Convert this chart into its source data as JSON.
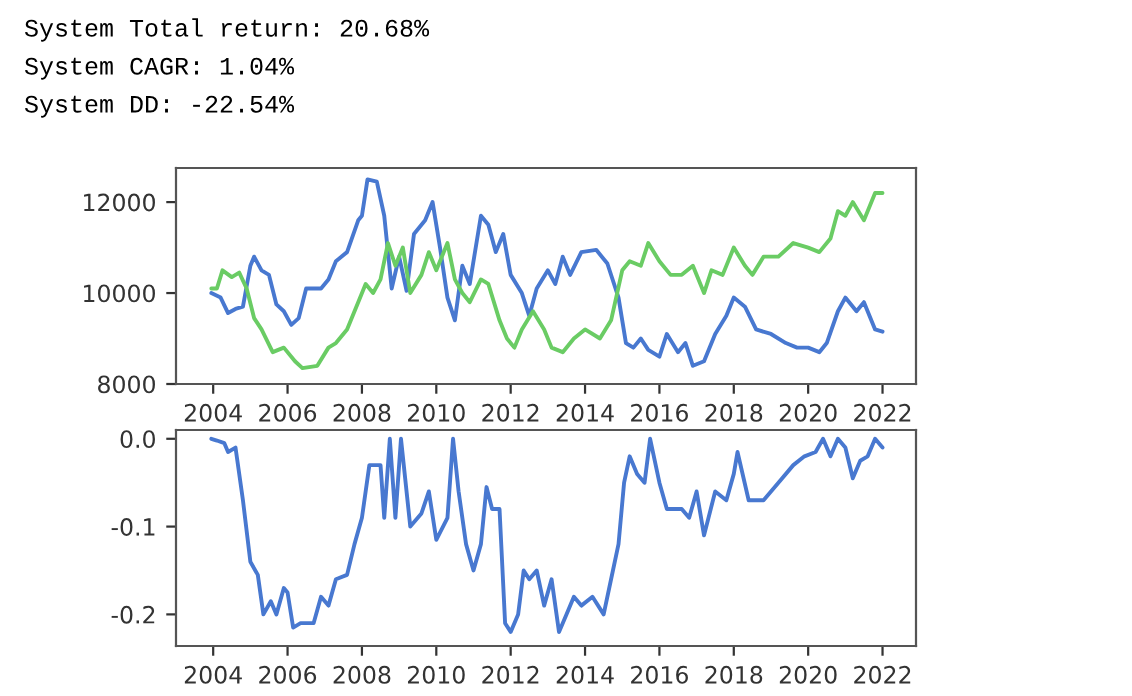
{
  "chart_data": [
    {
      "type": "line",
      "annotations": [
        "System Total return: 20.68%",
        "System CAGR: 1.04%",
        "System DD: -22.54%"
      ],
      "xlim": [
        2003.0,
        2022.9
      ],
      "xticks": [
        2004,
        2006,
        2008,
        2010,
        2012,
        2014,
        2016,
        2018,
        2020,
        2022
      ],
      "ylim": [
        8000,
        12750
      ],
      "yticks": [
        8000,
        10000,
        12000
      ],
      "grid": false,
      "legend": false,
      "series": [
        {
          "color": "#4878d0",
          "x": [
            2003.95,
            2004.2,
            2004.4,
            2004.6,
            2004.8,
            2005.0,
            2005.1,
            2005.3,
            2005.5,
            2005.7,
            2005.9,
            2006.1,
            2006.3,
            2006.5,
            2006.9,
            2007.1,
            2007.3,
            2007.6,
            2007.9,
            2008.0,
            2008.15,
            2008.4,
            2008.6,
            2008.8,
            2009.0,
            2009.2,
            2009.4,
            2009.7,
            2009.9,
            2010.1,
            2010.3,
            2010.5,
            2010.7,
            2010.9,
            2011.2,
            2011.4,
            2011.6,
            2011.8,
            2012.0,
            2012.3,
            2012.5,
            2012.7,
            2013.0,
            2013.2,
            2013.4,
            2013.6,
            2013.9,
            2014.3,
            2014.6,
            2014.9,
            2015.1,
            2015.3,
            2015.5,
            2015.7,
            2016.0,
            2016.2,
            2016.5,
            2016.7,
            2016.9,
            2017.2,
            2017.5,
            2017.8,
            2018.0,
            2018.3,
            2018.6,
            2019.0,
            2019.4,
            2019.7,
            2020.0,
            2020.3,
            2020.5,
            2020.8,
            2021.0,
            2021.3,
            2021.5,
            2021.8,
            2022.0
          ],
          "values": [
            10000,
            9900,
            9560,
            9650,
            9700,
            10600,
            10800,
            10500,
            10400,
            9750,
            9600,
            9300,
            9450,
            10100,
            10100,
            10300,
            10700,
            10900,
            11600,
            11700,
            12500,
            12450,
            11700,
            10100,
            10800,
            10050,
            11300,
            11600,
            12000,
            11000,
            9900,
            9400,
            10600,
            10200,
            11700,
            11500,
            10900,
            11300,
            10400,
            10000,
            9500,
            10100,
            10500,
            10200,
            10800,
            10400,
            10900,
            10950,
            10650,
            9900,
            8900,
            8800,
            9000,
            8750,
            8600,
            9100,
            8700,
            8900,
            8400,
            8500,
            9100,
            9500,
            9900,
            9700,
            9200,
            9100,
            8900,
            8800,
            8800,
            8700,
            8900,
            9600,
            9900,
            9600,
            9800,
            9200,
            9150
          ]
        },
        {
          "color": "#6acc64",
          "x": [
            2003.95,
            2004.1,
            2004.25,
            2004.5,
            2004.7,
            2004.9,
            2005.1,
            2005.3,
            2005.6,
            2005.9,
            2006.2,
            2006.4,
            2006.8,
            2007.1,
            2007.3,
            2007.6,
            2007.9,
            2008.1,
            2008.3,
            2008.5,
            2008.7,
            2008.9,
            2009.1,
            2009.3,
            2009.6,
            2009.8,
            2010.0,
            2010.3,
            2010.5,
            2010.7,
            2010.9,
            2011.2,
            2011.4,
            2011.7,
            2011.9,
            2012.1,
            2012.3,
            2012.6,
            2012.9,
            2013.1,
            2013.4,
            2013.7,
            2014.0,
            2014.4,
            2014.7,
            2015.0,
            2015.2,
            2015.5,
            2015.7,
            2016.0,
            2016.3,
            2016.6,
            2016.9,
            2017.2,
            2017.4,
            2017.7,
            2018.0,
            2018.3,
            2018.5,
            2018.8,
            2019.2,
            2019.6,
            2020.0,
            2020.3,
            2020.6,
            2020.8,
            2021.0,
            2021.2,
            2021.5,
            2021.8,
            2022.0
          ],
          "values": [
            10100,
            10100,
            10500,
            10350,
            10450,
            10100,
            9450,
            9200,
            8700,
            8800,
            8500,
            8350,
            8400,
            8800,
            8900,
            9200,
            9800,
            10200,
            10000,
            10300,
            11100,
            10600,
            11000,
            10000,
            10400,
            10900,
            10500,
            11100,
            10300,
            10000,
            9800,
            10300,
            10200,
            9400,
            9000,
            8800,
            9200,
            9600,
            9200,
            8800,
            8700,
            9000,
            9200,
            9000,
            9400,
            10500,
            10700,
            10600,
            11100,
            10700,
            10400,
            10400,
            10600,
            10000,
            10500,
            10400,
            11000,
            10600,
            10400,
            10800,
            10800,
            11100,
            11000,
            10900,
            11200,
            11800,
            11700,
            12000,
            11600,
            12200,
            12200
          ]
        }
      ]
    },
    {
      "type": "line",
      "xlim": [
        2003.0,
        2022.9
      ],
      "xticks": [
        2004,
        2006,
        2008,
        2010,
        2012,
        2014,
        2016,
        2018,
        2020,
        2022
      ],
      "ylim": [
        -0.236,
        0.01
      ],
      "yticks": [
        {
          "value": -0.2,
          "label": "-0.2"
        },
        {
          "value": -0.1,
          "label": "-0.1"
        },
        {
          "value": 0.0,
          "label": "0.0"
        }
      ],
      "grid": false,
      "legend": false,
      "series": [
        {
          "color": "#4878d0",
          "x": [
            2003.95,
            2004.1,
            2004.3,
            2004.4,
            2004.6,
            2004.8,
            2005.0,
            2005.2,
            2005.35,
            2005.55,
            2005.7,
            2005.9,
            2006.0,
            2006.15,
            2006.35,
            2006.7,
            2006.9,
            2007.1,
            2007.3,
            2007.6,
            2007.8,
            2008.0,
            2008.2,
            2008.5,
            2008.6,
            2008.75,
            2008.9,
            2009.05,
            2009.3,
            2009.6,
            2009.8,
            2010.0,
            2010.3,
            2010.45,
            2010.6,
            2010.8,
            2011.0,
            2011.2,
            2011.35,
            2011.5,
            2011.7,
            2011.85,
            2012.0,
            2012.2,
            2012.35,
            2012.5,
            2012.7,
            2012.9,
            2013.1,
            2013.3,
            2013.5,
            2013.7,
            2013.9,
            2014.2,
            2014.5,
            2014.7,
            2014.9,
            2015.05,
            2015.2,
            2015.4,
            2015.6,
            2015.75,
            2016.0,
            2016.2,
            2016.6,
            2016.8,
            2017.0,
            2017.2,
            2017.5,
            2017.8,
            2018.0,
            2018.1,
            2018.4,
            2018.8,
            2019.2,
            2019.6,
            2019.9,
            2020.2,
            2020.4,
            2020.6,
            2020.8,
            2021.0,
            2021.2,
            2021.4,
            2021.6,
            2021.8,
            2022.0
          ],
          "values": [
            0.0,
            -0.002,
            -0.005,
            -0.015,
            -0.01,
            -0.07,
            -0.14,
            -0.155,
            -0.2,
            -0.185,
            -0.2,
            -0.17,
            -0.175,
            -0.215,
            -0.21,
            -0.21,
            -0.18,
            -0.19,
            -0.16,
            -0.155,
            -0.12,
            -0.09,
            -0.03,
            -0.03,
            -0.09,
            0.0,
            -0.09,
            0.0,
            -0.1,
            -0.085,
            -0.06,
            -0.115,
            -0.09,
            0.0,
            -0.06,
            -0.12,
            -0.15,
            -0.12,
            -0.055,
            -0.08,
            -0.08,
            -0.21,
            -0.22,
            -0.2,
            -0.15,
            -0.16,
            -0.15,
            -0.19,
            -0.16,
            -0.22,
            -0.2,
            -0.18,
            -0.19,
            -0.18,
            -0.2,
            -0.16,
            -0.12,
            -0.05,
            -0.02,
            -0.04,
            -0.05,
            0.0,
            -0.05,
            -0.08,
            -0.08,
            -0.09,
            -0.06,
            -0.11,
            -0.06,
            -0.07,
            -0.04,
            -0.015,
            -0.07,
            -0.07,
            -0.05,
            -0.03,
            -0.02,
            -0.015,
            0.0,
            -0.02,
            0.0,
            -0.01,
            -0.045,
            -0.025,
            -0.02,
            0.0,
            -0.01
          ]
        }
      ]
    }
  ]
}
